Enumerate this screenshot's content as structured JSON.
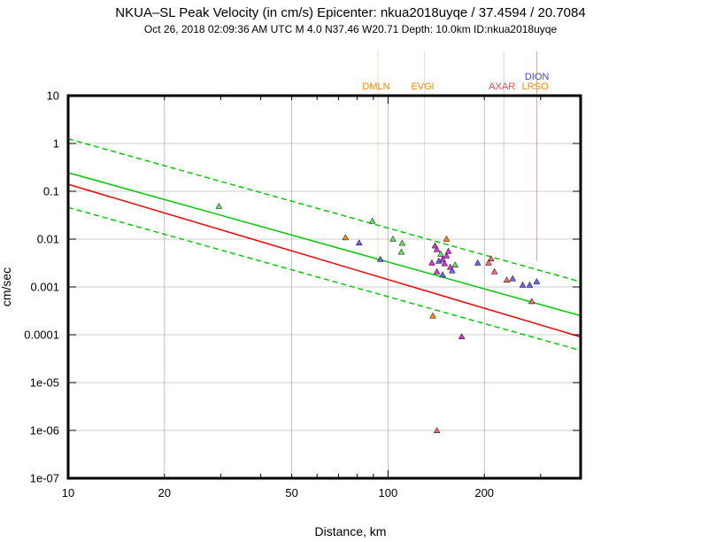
{
  "chart_data": {
    "type": "scatter",
    "title": "NKUA–SL Peak Velocity (in cm/s) Epicenter: nkua2018uyqe / 37.4594 / 20.7084",
    "subtitle": "Oct 26, 2018 02:09:36 AM UTC   M 4.0   N37.46 W20.71   Depth: 10.0km   ID:nkua2018uyqe",
    "xlabel": "Distance, km",
    "ylabel": "cm/sec",
    "xscale": "log",
    "yscale": "log",
    "xlim": [
      10,
      400
    ],
    "ylim": [
      1e-07,
      10
    ],
    "grid": true,
    "x_ticks": [
      {
        "value": 10,
        "label": "10"
      },
      {
        "value": 20,
        "label": "20"
      },
      {
        "value": 50,
        "label": "50"
      },
      {
        "value": 100,
        "label": "100"
      },
      {
        "value": 200,
        "label": "200"
      }
    ],
    "y_ticks": [
      {
        "value": 10,
        "label": "10"
      },
      {
        "value": 1,
        "label": "1"
      },
      {
        "value": 0.1,
        "label": "0.1"
      },
      {
        "value": 0.01,
        "label": "0.01"
      },
      {
        "value": 0.001,
        "label": "0.001"
      },
      {
        "value": 0.0001,
        "label": "0.0001"
      },
      {
        "value": 1e-05,
        "label": "1e-05"
      },
      {
        "value": 1e-06,
        "label": "1e-06"
      },
      {
        "value": 1e-07,
        "label": "1e-07"
      }
    ],
    "curves": [
      {
        "name": "mean",
        "color": "#00cc00",
        "style": "solid",
        "x": [
          10,
          400
        ],
        "y": [
          0.245,
          0.00025
        ]
      },
      {
        "name": "mean+1sd",
        "color": "#00cc00",
        "style": "dashed",
        "x": [
          10,
          400
        ],
        "y": [
          1.25,
          0.00128
        ]
      },
      {
        "name": "mean-1sd",
        "color": "#00cc00",
        "style": "dashed",
        "x": [
          10,
          400
        ],
        "y": [
          0.046,
          4.7e-05
        ]
      },
      {
        "name": "reference",
        "color": "#ff0000",
        "style": "solid",
        "x": [
          10,
          400
        ],
        "y": [
          0.14,
          9e-05
        ]
      }
    ],
    "stations": [
      {
        "name": "DMLN",
        "color": "#ff8800",
        "x": 93
      },
      {
        "name": "EVGI",
        "color": "#ff8800",
        "x": 130
      },
      {
        "name": "AXAR",
        "color": "#ff4444",
        "x": 230
      },
      {
        "name": "DION",
        "color": "#4444ff",
        "x": 292
      },
      {
        "name": "LRSO",
        "color": "#ff8800",
        "x": 292
      }
    ],
    "points": [
      {
        "x": 29.6,
        "y": 0.049,
        "color": "#66dd66"
      },
      {
        "x": 73.6,
        "y": 0.0108,
        "color": "#ff8800"
      },
      {
        "x": 81.2,
        "y": 0.0084,
        "color": "#6666ff"
      },
      {
        "x": 89.3,
        "y": 0.024,
        "color": "#66dd66"
      },
      {
        "x": 94.6,
        "y": 0.0038,
        "color": "#6666ff"
      },
      {
        "x": 103.6,
        "y": 0.0101,
        "color": "#66dd66"
      },
      {
        "x": 110.7,
        "y": 0.0083,
        "color": "#66dd66"
      },
      {
        "x": 110.1,
        "y": 0.0054,
        "color": "#66dd66"
      },
      {
        "x": 137.1,
        "y": 0.0032,
        "color": "#dd33dd"
      },
      {
        "x": 140.2,
        "y": 0.0073,
        "color": "#dd33dd"
      },
      {
        "x": 142.1,
        "y": 0.0061,
        "color": "#dd33dd"
      },
      {
        "x": 144.1,
        "y": 0.0035,
        "color": "#6666ff"
      },
      {
        "x": 146.1,
        "y": 0.0049,
        "color": "#66dd66"
      },
      {
        "x": 148.1,
        "y": 0.0038,
        "color": "#dd33dd"
      },
      {
        "x": 150.2,
        "y": 0.0031,
        "color": "#dd33dd"
      },
      {
        "x": 152.3,
        "y": 0.0045,
        "color": "#dd33dd"
      },
      {
        "x": 152.3,
        "y": 0.0101,
        "color": "#ff8800"
      },
      {
        "x": 154.4,
        "y": 0.0056,
        "color": "#dd33dd"
      },
      {
        "x": 156.5,
        "y": 0.0026,
        "color": "#dd33dd"
      },
      {
        "x": 158.7,
        "y": 0.0022,
        "color": "#6666ff"
      },
      {
        "x": 162.0,
        "y": 0.0029,
        "color": "#66dd66"
      },
      {
        "x": 148.1,
        "y": 0.0018,
        "color": "#6666ff"
      },
      {
        "x": 142.1,
        "y": 0.0021,
        "color": "#dd33dd"
      },
      {
        "x": 138.1,
        "y": 0.00025,
        "color": "#ff8800"
      },
      {
        "x": 169.9,
        "y": 9.2e-05,
        "color": "#dd33dd"
      },
      {
        "x": 142.1,
        "y": 1e-06,
        "color": "#ff6666"
      },
      {
        "x": 190.7,
        "y": 0.0032,
        "color": "#6666ff"
      },
      {
        "x": 206.1,
        "y": 0.0032,
        "color": "#ff6666"
      },
      {
        "x": 209.9,
        "y": 0.0039,
        "color": "#ff6666"
      },
      {
        "x": 215.0,
        "y": 0.0021,
        "color": "#ff6666"
      },
      {
        "x": 235.0,
        "y": 0.0014,
        "color": "#ff6666"
      },
      {
        "x": 245.2,
        "y": 0.0015,
        "color": "#6666ff"
      },
      {
        "x": 263.6,
        "y": 0.0011,
        "color": "#6666ff"
      },
      {
        "x": 277.2,
        "y": 0.0011,
        "color": "#6666ff"
      },
      {
        "x": 281.2,
        "y": 0.0005,
        "color": "#ff6666"
      },
      {
        "x": 291.5,
        "y": 0.0013,
        "color": "#6666ff"
      }
    ]
  }
}
